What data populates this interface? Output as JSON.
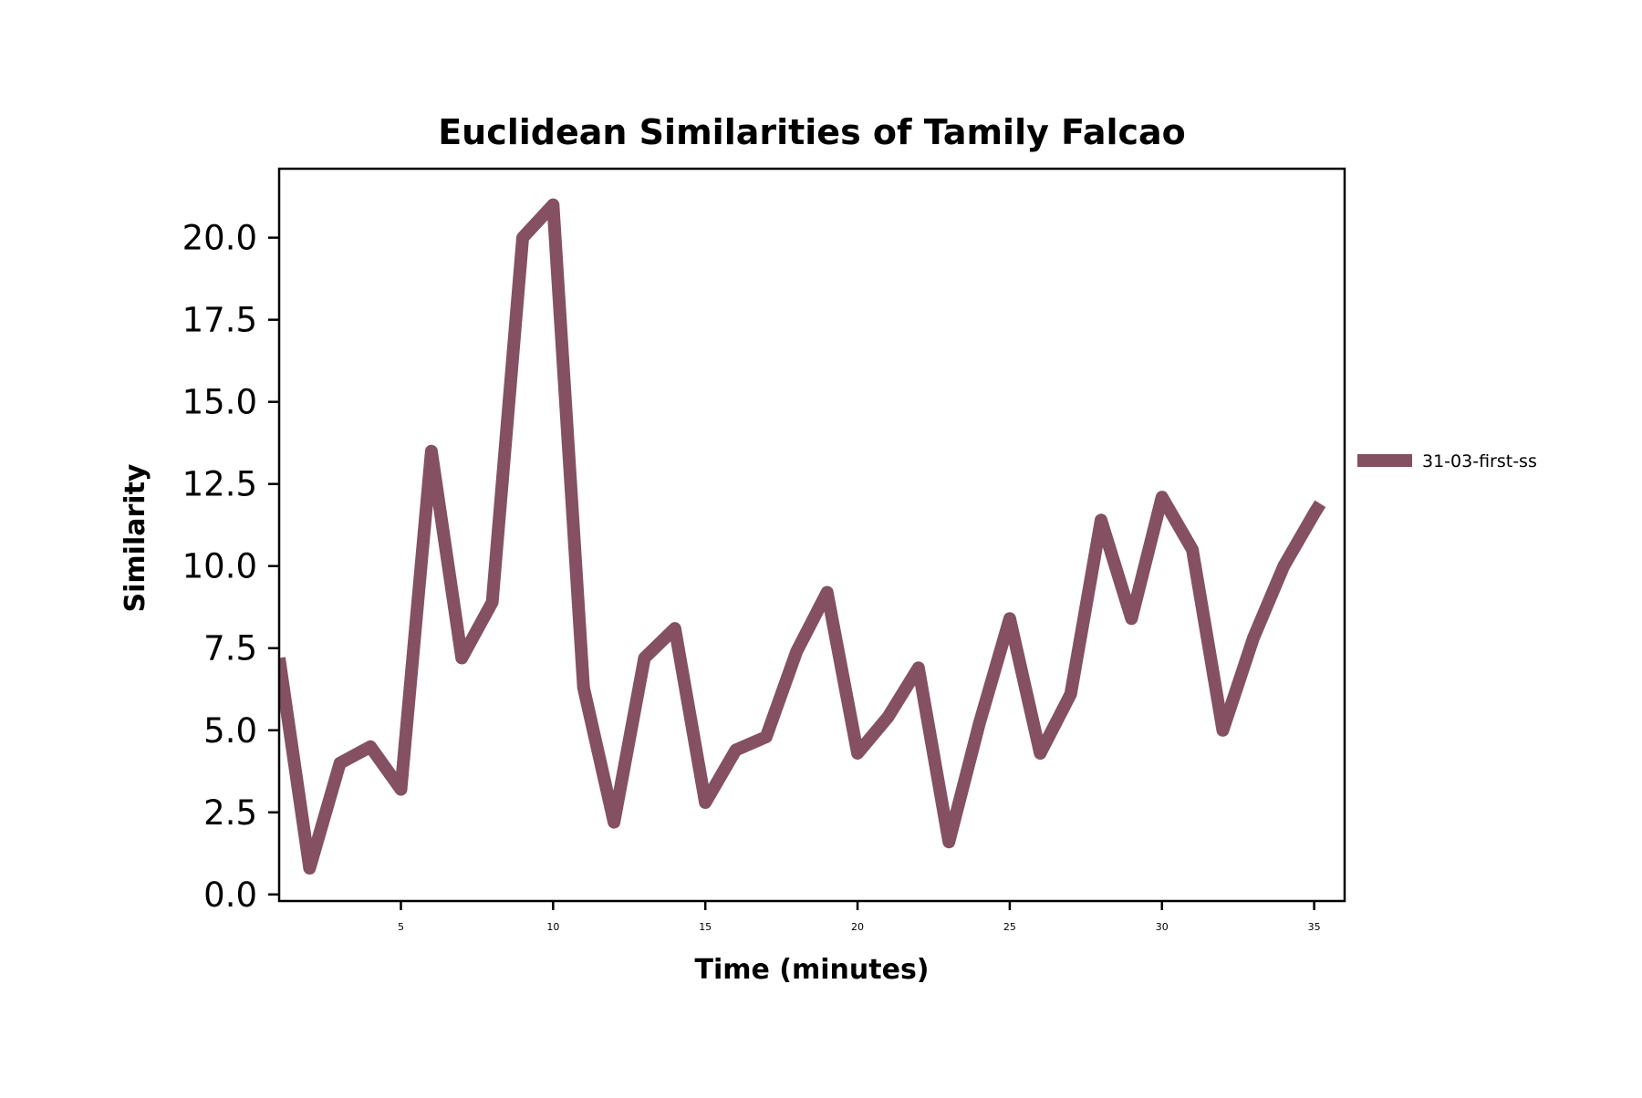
{
  "chart_data": {
    "type": "line",
    "title": "Euclidean Similarities of Tamily Falcao",
    "xlabel": "Time (minutes)",
    "ylabel": "Similarity",
    "xlim": [
      1,
      36
    ],
    "ylim": [
      -0.2,
      22.1
    ],
    "xticks": [
      5,
      10,
      15,
      20,
      25,
      30,
      35
    ],
    "xtick_labels": [
      "5",
      "10",
      "15",
      "20",
      "25",
      "30",
      "35"
    ],
    "yticks": [
      0,
      2.5,
      5,
      7.5,
      10,
      12.5,
      15,
      17.5,
      20
    ],
    "ytick_labels": [
      "0.0",
      "2.5",
      "5.0",
      "7.5",
      "10.0",
      "12.5",
      "15.0",
      "17.5",
      "20.0"
    ],
    "grid": false,
    "legend_position": "center-right-outside",
    "series": [
      {
        "name": "31-03-first-ss",
        "color": "#845062",
        "x": [
          1,
          2,
          3,
          4,
          5,
          6,
          7,
          8,
          9,
          10,
          11,
          12,
          13,
          14,
          15,
          16,
          17,
          18,
          19,
          20,
          21,
          22,
          23,
          24,
          25,
          26,
          27,
          28,
          29,
          30,
          31,
          32,
          33,
          34,
          35,
          35.2
        ],
        "y": [
          7.2,
          0.8,
          4.0,
          4.5,
          3.2,
          13.5,
          7.2,
          8.9,
          20.0,
          21.0,
          6.3,
          2.2,
          7.2,
          8.1,
          2.8,
          4.4,
          4.8,
          7.4,
          9.2,
          4.3,
          5.4,
          6.9,
          1.6,
          5.2,
          8.4,
          4.3,
          6.1,
          11.4,
          8.4,
          12.1,
          10.5,
          5.0,
          7.8,
          10.0,
          11.6,
          11.9
        ]
      }
    ]
  }
}
